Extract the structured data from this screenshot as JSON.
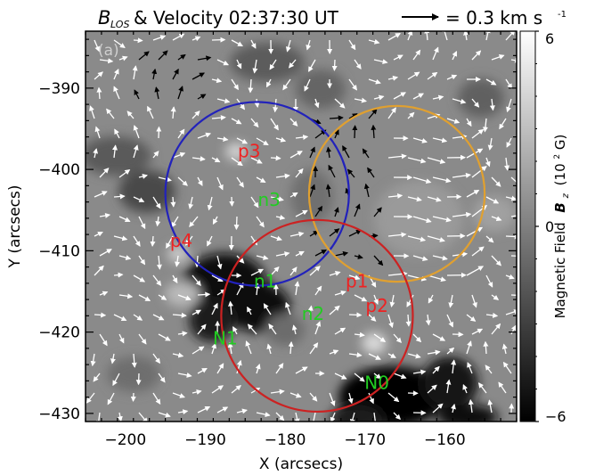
{
  "title": {
    "main": "& Velocity 02:37:30 UT",
    "b_symbol": "B",
    "b_subscript": "LOS",
    "scale_label": "= 0.3 km s",
    "scale_exponent": "-1"
  },
  "panel_label": "(a)",
  "chart_data": {
    "type": "heatmap",
    "x_axis": {
      "label": "X (arcsecs)",
      "range": [
        -205,
        -151
      ],
      "ticks": [
        -200,
        -190,
        -180,
        -170,
        -160
      ]
    },
    "y_axis": {
      "label": "Y (arcsecs)",
      "range": [
        -431,
        -383
      ],
      "ticks": [
        -390,
        -400,
        -410,
        -420,
        -430
      ]
    },
    "colorbar": {
      "label_prefix": "Magnetic Field",
      "label_var": "B",
      "label_sub": "z",
      "label_unit_base": "(10",
      "label_unit_exp": "2",
      "label_unit_end": " G)",
      "range": [
        -6,
        6
      ],
      "tick_labels": [
        "6",
        "0",
        "-6"
      ],
      "tick_values": [
        6,
        0,
        -6
      ]
    },
    "circles": [
      {
        "color": "#2222bb",
        "center": [
          -183.5,
          -403
        ],
        "radius": 11.5
      },
      {
        "color": "#e0a030",
        "center": [
          -166,
          -403
        ],
        "radius": 11
      },
      {
        "color": "#cc2222",
        "center": [
          -176,
          -418
        ],
        "radius": 12
      }
    ],
    "annotations": [
      {
        "text": "p3",
        "x": -184.5,
        "y": -398.5,
        "color": "#ee2222"
      },
      {
        "text": "n3",
        "x": -182,
        "y": -404.5,
        "color": "#22cc22"
      },
      {
        "text": "p4",
        "x": -193,
        "y": -409.5,
        "color": "#ee2222"
      },
      {
        "text": "n1",
        "x": -182.5,
        "y": -414.5,
        "color": "#22cc22"
      },
      {
        "text": "p1",
        "x": -171,
        "y": -414.5,
        "color": "#ee2222"
      },
      {
        "text": "p2",
        "x": -168.5,
        "y": -417.5,
        "color": "#ee2222"
      },
      {
        "text": "n2",
        "x": -176.5,
        "y": -418.5,
        "color": "#22cc22"
      },
      {
        "text": "N1",
        "x": -187.5,
        "y": -421.5,
        "color": "#22cc22"
      },
      {
        "text": "N0",
        "x": -168.5,
        "y": -427,
        "color": "#22cc22"
      }
    ]
  }
}
